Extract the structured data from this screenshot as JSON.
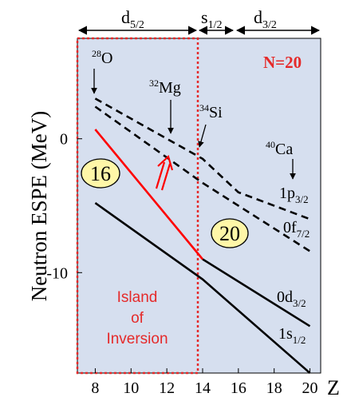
{
  "chart_data": {
    "type": "line",
    "ylabel": "Neutron ESPE (MeV)",
    "xlabel": "Z",
    "xlim": [
      7,
      20.6
    ],
    "ylim": [
      -17.5,
      7.5
    ],
    "xticks": [
      8,
      10,
      12,
      14,
      16,
      18,
      20
    ],
    "xtick_labels": [
      "8",
      "10",
      "12",
      "14",
      "16",
      "18",
      "20"
    ],
    "yticks": [
      0,
      -10
    ],
    "ytick_labels": [
      "0",
      "-10"
    ],
    "grid": false,
    "background": "#d6dfef",
    "series": [
      {
        "name": "0f7/2",
        "color": "#000000",
        "dash": true,
        "x": [
          8,
          14,
          20
        ],
        "y": [
          2.4,
          -3.3,
          -8.4
        ]
      },
      {
        "name": "1p3/2",
        "color": "#000000",
        "dash": true,
        "x": [
          8,
          14,
          16,
          20
        ],
        "y": [
          3.0,
          -1.5,
          -4.0,
          -6.0
        ]
      },
      {
        "name": "0d3/2",
        "color": "#000000",
        "dash": false,
        "x": [
          8,
          14,
          20
        ],
        "y": [
          -4.8,
          -10.5,
          -17.5
        ]
      },
      {
        "name": "1s1/2",
        "color": "#000000",
        "dash": false,
        "x": [
          14,
          20
        ],
        "y": [
          -9.0,
          -14.0
        ]
      },
      {
        "name": "",
        "color": "#ff0000",
        "dash": false,
        "x": [
          8,
          14
        ],
        "y": [
          0.7,
          -9.0
        ]
      }
    ],
    "regions": [
      {
        "x0": 7,
        "x1": 14,
        "label_lines": [
          "Island",
          "of",
          "Inversion"
        ],
        "color": "#e52a2a"
      }
    ],
    "annotations": {
      "nuclei": [
        {
          "mass": "28",
          "element": "O",
          "x": 8
        },
        {
          "mass": "32",
          "element": "Mg",
          "x": 12
        },
        {
          "mass": "34",
          "element": "Si",
          "x": 14
        },
        {
          "mass": "40",
          "element": "Ca",
          "x": 20
        }
      ],
      "shell_gaps": [
        "16",
        "20"
      ],
      "neutron_number": "N=20",
      "orbit_labels": [
        {
          "base": "1p",
          "sub": "3/2"
        },
        {
          "base": "0f",
          "sub": "7/2"
        },
        {
          "base": "0d",
          "sub": "3/2"
        },
        {
          "base": "1s",
          "sub": "1/2"
        }
      ],
      "top_ranges": [
        {
          "base": "d",
          "sub": "5/2"
        },
        {
          "base": "s",
          "sub": "1/2"
        },
        {
          "base": "d",
          "sub": "3/2"
        }
      ]
    },
    "colors": {
      "accent_red": "#ff0000",
      "gap_fill": "#fff7a8",
      "region_text": "#e52a2a"
    }
  }
}
